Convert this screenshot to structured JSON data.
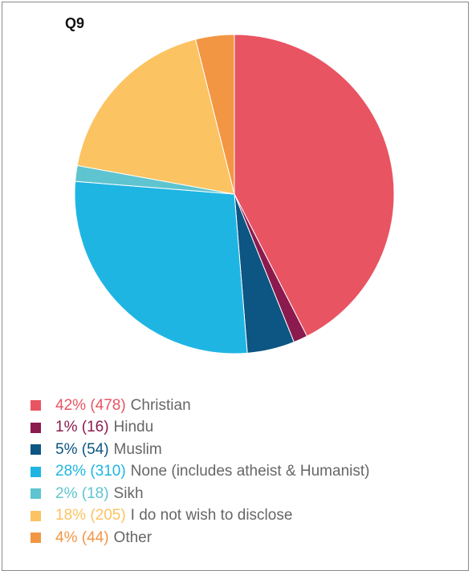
{
  "chart_data": {
    "type": "pie",
    "title": "Q9",
    "start_angle_deg": 0,
    "direction": "clockwise",
    "legend_position": "bottom",
    "slices": [
      {
        "label": "Christian",
        "percent_label": "42%",
        "count_label": "(478)",
        "value": 478,
        "color": "#e85462"
      },
      {
        "label": "Hindu",
        "percent_label": "1%",
        "count_label": "(16)",
        "value": 16,
        "color": "#8b1a4e"
      },
      {
        "label": "Muslim",
        "percent_label": "5%",
        "count_label": "(54)",
        "value": 54,
        "color": "#0d5582"
      },
      {
        "label": "None (includes atheist & Humanist)",
        "percent_label": "28%",
        "count_label": "(310)",
        "value": 310,
        "color": "#1fb5e3"
      },
      {
        "label": "Sikh",
        "percent_label": "2%",
        "count_label": "(18)",
        "value": 18,
        "color": "#5ec4cf"
      },
      {
        "label": "I do not wish to disclose",
        "percent_label": "18%",
        "count_label": "(205)",
        "value": 205,
        "color": "#fbc362"
      },
      {
        "label": "Other",
        "percent_label": "4%",
        "count_label": "(44)",
        "value": 44,
        "color": "#f29643"
      }
    ]
  }
}
